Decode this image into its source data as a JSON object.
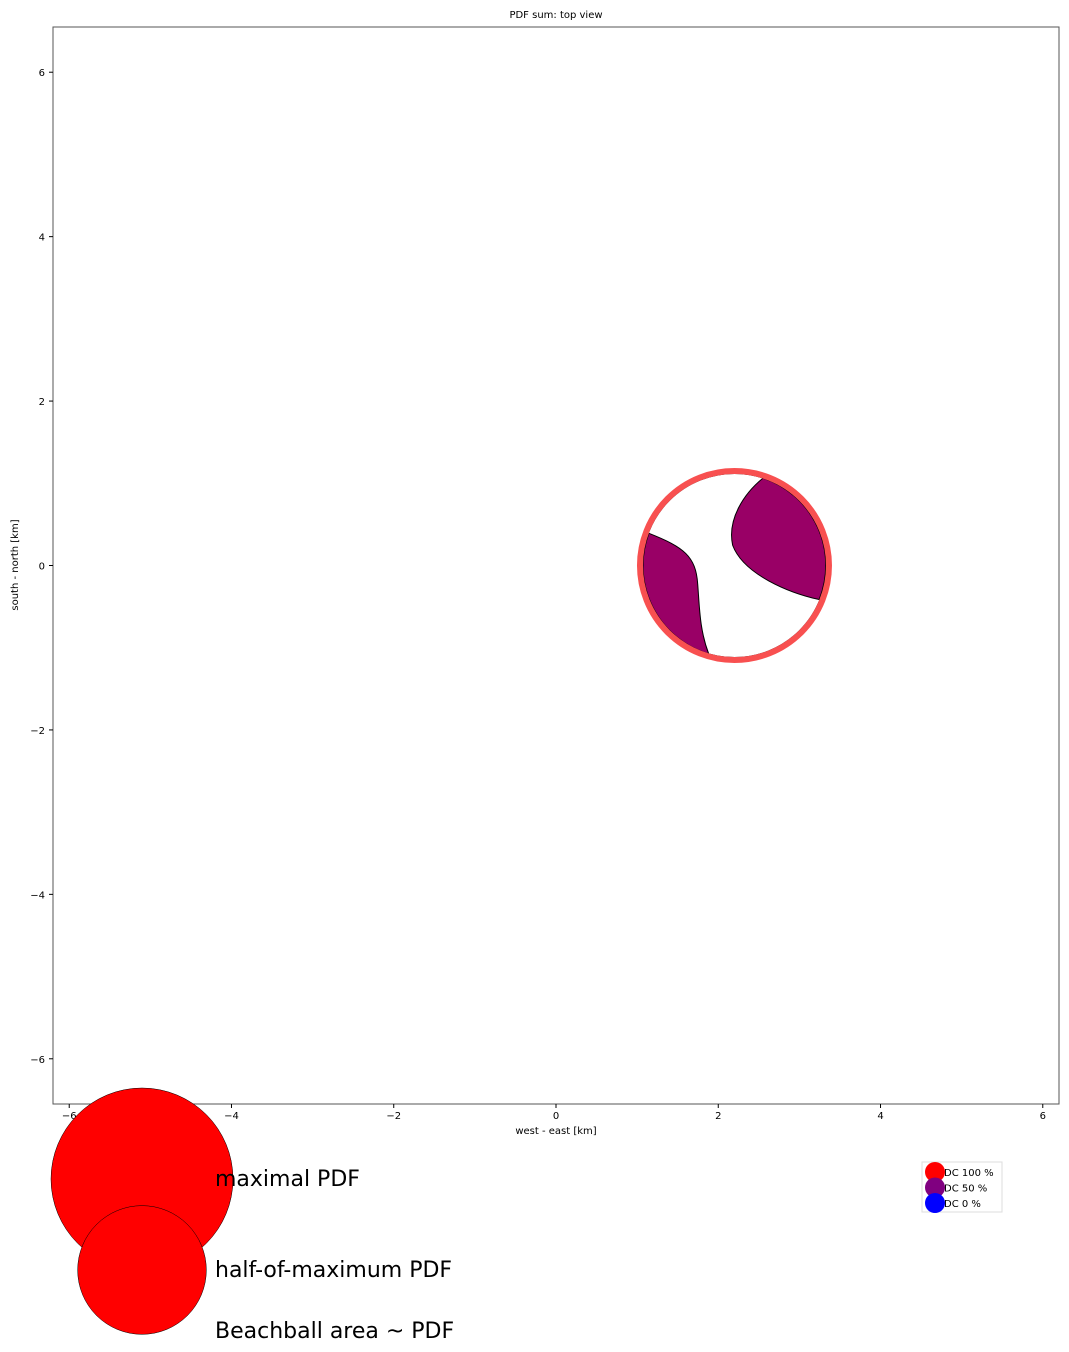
{
  "chart_data": {
    "type": "scatter",
    "title": "PDF sum: top view",
    "xlabel": "west - east [km]",
    "ylabel": "south - north [km]",
    "xlim": [
      -6.2,
      6.2
    ],
    "ylim": [
      -6.55,
      6.55
    ],
    "x_ticks": [
      -6,
      -4,
      -2,
      0,
      2,
      4,
      6
    ],
    "y_ticks": [
      -6,
      -4,
      -2,
      0,
      2,
      4,
      6
    ],
    "grid": false,
    "beachballs": [
      {
        "x": 2.2,
        "y": 0.0,
        "dc_percent": 100,
        "pdf_fraction": 1.0,
        "fill_color": "#990066",
        "ring_color": "#f85050"
      }
    ],
    "size_legend": {
      "items": [
        {
          "label": "maximal PDF",
          "fraction": 1.0
        },
        {
          "label": "half-of-maximum PDF",
          "fraction": 0.5
        }
      ],
      "note": "Beachball area ~ PDF",
      "color": "#ff0000"
    },
    "dc_legend": {
      "items": [
        {
          "label": "DC 100 %",
          "color": "#ff0000"
        },
        {
          "label": "DC 50 %",
          "color": "#800080"
        },
        {
          "label": "DC 0 %",
          "color": "#0000ff"
        }
      ],
      "placement": "lower-right outside"
    }
  }
}
